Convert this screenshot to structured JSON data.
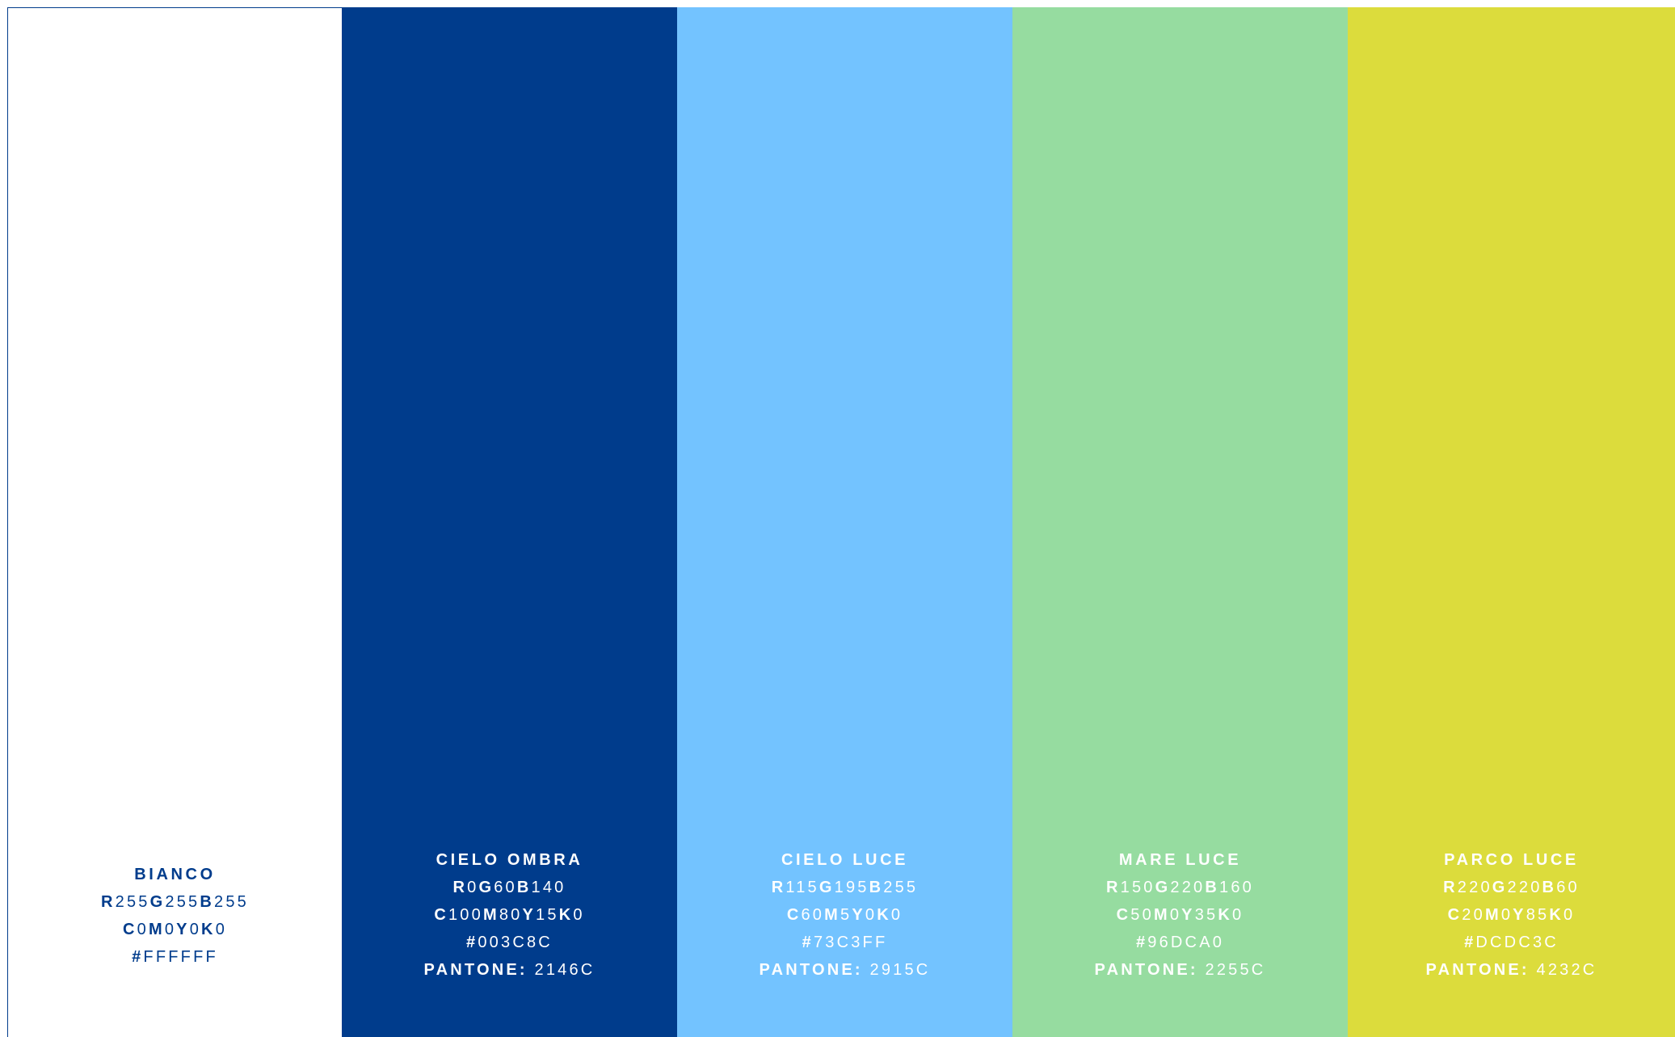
{
  "swatches": [
    {
      "name": "BIANCO",
      "bg": "#FFFFFF",
      "text_color": "#003C8C",
      "r": "255",
      "g": "255",
      "b": "255",
      "c": "0",
      "m": "0",
      "y": "0",
      "k": "0",
      "hex": "FFFFFF"
    },
    {
      "name": "CIELO OMBRA",
      "bg": "#003C8C",
      "text_color": "#FFFFFF",
      "r": "0",
      "g": "60",
      "b": "140",
      "c": "100",
      "m": "80",
      "y": "15",
      "k": "0",
      "hex": "003C8C",
      "pantone": "2146C"
    },
    {
      "name": "CIELO LUCE",
      "bg": "#73C3FF",
      "text_color": "#FFFFFF",
      "r": "115",
      "g": "195",
      "b": "255",
      "c": "60",
      "m": "5",
      "y": "0",
      "k": "0",
      "hex": "73C3FF",
      "pantone": "2915C"
    },
    {
      "name": "MARE LUCE",
      "bg": "#96DCA0",
      "text_color": "#FFFFFF",
      "r": "150",
      "g": "220",
      "b": "160",
      "c": "50",
      "m": "0",
      "y": "35",
      "k": "0",
      "hex": "96DCA0",
      "pantone": "2255C"
    },
    {
      "name": "PARCO LUCE",
      "bg": "#DCDC3C",
      "text_color": "#FFFFFF",
      "r": "220",
      "g": "220",
      "b": "60",
      "c": "20",
      "m": "0",
      "y": "85",
      "k": "0",
      "hex": "DCDC3C",
      "pantone": "4232C"
    }
  ],
  "labels": {
    "r": "R",
    "g": "G",
    "b": "B",
    "c": "C",
    "m": "M",
    "y": "Y",
    "k": "K",
    "hash": "#",
    "pantone": "PANTONE:"
  }
}
